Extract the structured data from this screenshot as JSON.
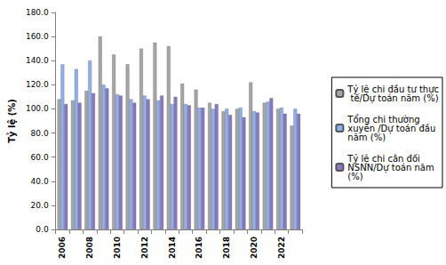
{
  "chart_data": {
    "type": "bar",
    "y_label": "Tỷ lệ (%)",
    "categories": [
      "2006",
      null,
      "2008",
      null,
      "2010",
      null,
      "2012",
      null,
      "2014",
      null,
      "2016",
      null,
      "2018",
      null,
      "2020",
      null,
      "2022",
      null
    ],
    "series": [
      {
        "name": "Tỷ lệ chi đầu tư thực tế/Dự toán năm (%)",
        "color": "#a6a6a6",
        "values": [
          108,
          107,
          115,
          160,
          145,
          137,
          150,
          155,
          152,
          121,
          116,
          105,
          98,
          100,
          122,
          105,
          100,
          86
        ]
      },
      {
        "name": "Tổng chi thường xuyên /Dự toán đầu năm (%)",
        "color": "#8fb0f0",
        "values": [
          137,
          133,
          140,
          120,
          112,
          108,
          111,
          107,
          104,
          104,
          101,
          100,
          100,
          101,
          98,
          106,
          101,
          100
        ]
      },
      {
        "name": "Tỷ lệ chi cân đối NSNN/Dự toán năm (%)",
        "color": "#8878c3",
        "values": [
          104,
          105,
          113,
          117,
          111,
          105,
          108,
          111,
          110,
          103,
          101,
          104,
          95,
          93,
          97,
          109,
          96,
          96
        ]
      }
    ],
    "ylim": [
      0,
      180
    ],
    "yticks": [
      {
        "value": 0,
        "label": "0.0"
      },
      {
        "value": 20,
        "label": "20.0"
      },
      {
        "value": 40,
        "label": "40.0"
      },
      {
        "value": 60,
        "label": "60.0"
      },
      {
        "value": 80,
        "label": "80.0"
      },
      {
        "value": 100,
        "label": "100.0"
      },
      {
        "value": 120,
        "label": "120.0"
      },
      {
        "value": 140,
        "label": "140.0"
      },
      {
        "value": 160,
        "label": "160.0"
      },
      {
        "value": 180,
        "label": "180.0"
      }
    ],
    "grid": false,
    "legend": "right"
  }
}
